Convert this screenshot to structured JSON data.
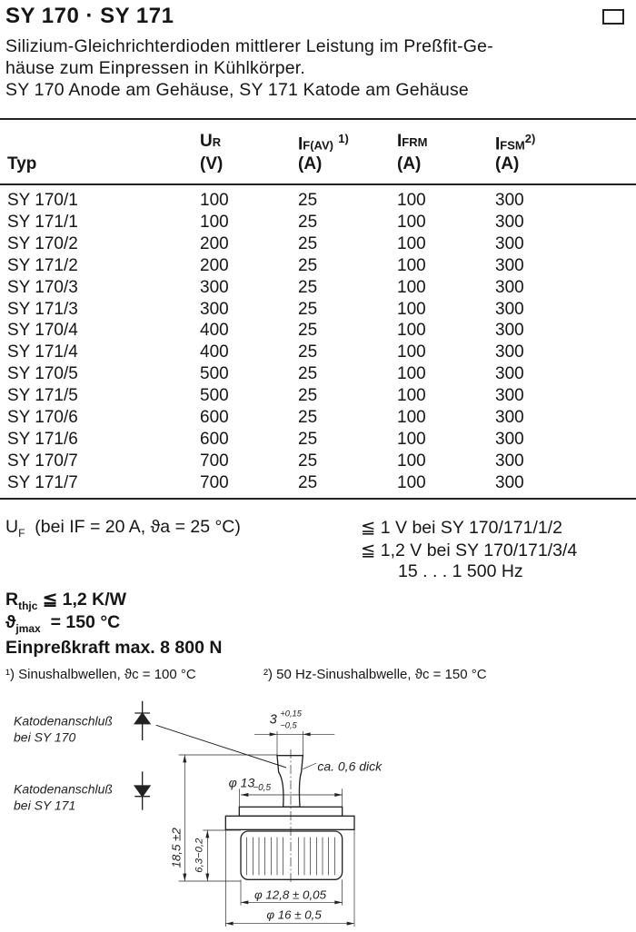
{
  "title": "SY 170 · SY 171",
  "description": [
    "Silizium-Gleichrichterdioden mittlerer Leistung im Preßfit-Ge-",
    "häuse zum Einpressen in Kühlkörper.",
    "SY 170 Anode am Gehäuse, SY 171 Katode am Gehäuse"
  ],
  "table": {
    "headers": [
      {
        "sym": "",
        "sub": "",
        "sup": "",
        "unit": "Typ"
      },
      {
        "sym": "U",
        "sub": "R",
        "sup": "",
        "unit": "(V)"
      },
      {
        "sym": "I",
        "sub": "F(AV)",
        "sup": "1)",
        "unit": "(A)"
      },
      {
        "sym": "I",
        "sub": "FRM",
        "sup": "",
        "unit": "(A)"
      },
      {
        "sym": "I",
        "sub": "FSM",
        "sup": "2)",
        "unit": "(A)"
      }
    ],
    "rows": [
      [
        "SY 170/1",
        "100",
        "25",
        "100",
        "300"
      ],
      [
        "SY 171/1",
        "100",
        "25",
        "100",
        "300"
      ],
      [
        "SY 170/2",
        "200",
        "25",
        "100",
        "300"
      ],
      [
        "SY 171/2",
        "200",
        "25",
        "100",
        "300"
      ],
      [
        "SY 170/3",
        "300",
        "25",
        "100",
        "300"
      ],
      [
        "SY 171/3",
        "300",
        "25",
        "100",
        "300"
      ],
      [
        "SY 170/4",
        "400",
        "25",
        "100",
        "300"
      ],
      [
        "SY 171/4",
        "400",
        "25",
        "100",
        "300"
      ],
      [
        "SY 170/5",
        "500",
        "25",
        "100",
        "300"
      ],
      [
        "SY 171/5",
        "500",
        "25",
        "100",
        "300"
      ],
      [
        "SY 170/6",
        "600",
        "25",
        "100",
        "300"
      ],
      [
        "SY 171/6",
        "600",
        "25",
        "100",
        "300"
      ],
      [
        "SY 170/7",
        "700",
        "25",
        "100",
        "300"
      ],
      [
        "SY 171/7",
        "700",
        "25",
        "100",
        "300"
      ]
    ]
  },
  "params": {
    "uf_label": "U",
    "uf_sub": "F",
    "uf_cond": "(bei IF = 20 A, ϑa = 25 °C)",
    "uf_values": [
      "≦ 1 V bei SY 170/171/1/2",
      "≦ 1,2 V bei SY 170/171/3/4",
      "15 . . . 1 500 Hz"
    ],
    "rth_label": "R",
    "rth_sub": "thjc",
    "rth_value": "≦ 1,2 K/W",
    "tj_label": "ϑ",
    "tj_sub": "jmax",
    "tj_value": "= 150 °C",
    "force": "Einpreßkraft max. 8 800 N",
    "footnote1": "¹) Sinushalbwellen, ϑc = 100 °C",
    "footnote2": "²) 50 Hz-Sinushalbwelle, ϑc = 150 °C"
  },
  "drawing": {
    "label1": [
      "Katodenanschluß",
      "bei SY 170"
    ],
    "label2": [
      "Katodenanschluß",
      "bei SY 171"
    ],
    "dim_tab_width": "3",
    "dim_tab_tol_plus": "+0,15",
    "dim_tab_tol_minus": "−0,5",
    "dim_thickness": "ca. 0,6 dick",
    "dim_flange": "φ 13",
    "dim_flange_tol": "−0,5",
    "dim_height": "18,5 ±2",
    "dim_body_height": "6,3−0,2",
    "dim_body_dia": "φ 12,8 ± 0,05",
    "dim_base_dia": "φ 16 ± 0,5"
  }
}
